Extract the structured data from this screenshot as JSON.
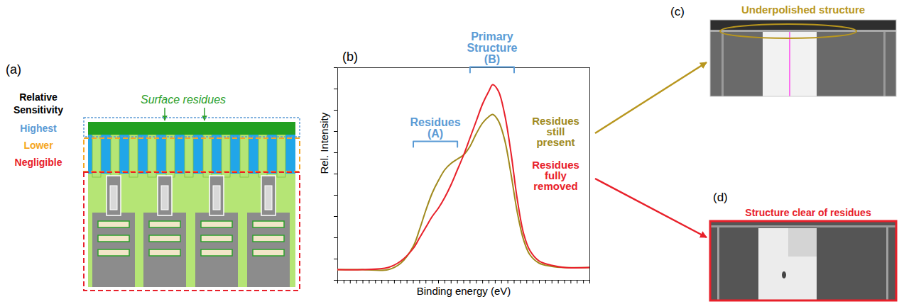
{
  "panel_a": {
    "letter": "(a)",
    "legend_title": "Relative Sensitivity",
    "levels": [
      {
        "label": "Highest",
        "color": "#5b9bd5"
      },
      {
        "label": "Lower",
        "color": "#f5a623"
      },
      {
        "label": "Negligible",
        "color": "#e8202a"
      }
    ],
    "annotation": {
      "text": "Surface residues",
      "color": "#2ca02c"
    }
  },
  "chart_data": {
    "type": "line",
    "letter": "(b)",
    "x_label": "Binding energy (eV)",
    "y_label": "Rel. Intensity",
    "x": [
      0,
      4,
      8,
      10,
      12,
      13,
      14,
      15,
      16,
      17,
      18,
      19,
      20,
      21,
      22,
      23,
      24,
      24.6,
      25.5,
      26.5,
      27.5,
      28.5,
      29.5,
      30.5,
      32,
      34,
      36,
      40
    ],
    "series": [
      {
        "name": "Residues still present",
        "color": "#a08a1e",
        "values": [
          0.5,
          0.5,
          0.5,
          0.8,
          1.6,
          2.4,
          3.3,
          4.1,
          4.7,
          5.2,
          5.5,
          5.7,
          5.9,
          6.3,
          6.9,
          7.4,
          7.7,
          7.8,
          7.5,
          6.6,
          5.0,
          3.2,
          1.9,
          1.2,
          0.8,
          0.65,
          0.6,
          0.6
        ]
      },
      {
        "name": "Residues fully removed",
        "color": "#e8202a",
        "values": [
          0.5,
          0.5,
          0.6,
          0.9,
          1.5,
          2.0,
          2.5,
          3.0,
          3.4,
          3.9,
          4.5,
          5.2,
          5.9,
          6.7,
          7.5,
          8.3,
          8.9,
          9.2,
          8.9,
          7.8,
          6.0,
          3.8,
          2.2,
          1.4,
          0.9,
          0.7,
          0.6,
          0.6
        ]
      }
    ],
    "xlim": [
      0,
      40
    ],
    "ylim": [
      0,
      10
    ],
    "xticks": [
      0,
      1,
      2,
      3,
      4,
      5,
      6,
      7,
      8,
      9,
      10,
      11,
      12,
      13,
      14,
      15,
      16,
      17,
      18,
      19,
      20,
      21,
      22,
      23,
      24,
      25,
      26,
      27,
      28,
      29,
      30,
      31,
      32,
      33,
      34,
      35,
      36,
      37,
      38,
      39,
      40
    ],
    "yticks": [
      0,
      1,
      2,
      3,
      4,
      5,
      6,
      7,
      8,
      9,
      10
    ],
    "tick_labels": false,
    "legend": "right",
    "annotations": [
      {
        "text": "Residues (A)",
        "x_range": [
          12,
          19
        ],
        "color": "#5b9bd5"
      },
      {
        "text": "Primary Structure (B)",
        "x_range": [
          21,
          28
        ],
        "color": "#5b9bd5"
      }
    ]
  },
  "panel_c": {
    "letter": "(c)",
    "title": "Underpolished structure",
    "color": "#b8961e"
  },
  "panel_d": {
    "letter": "(d)",
    "title": "Structure clear of residues",
    "color": "#e8202a"
  }
}
